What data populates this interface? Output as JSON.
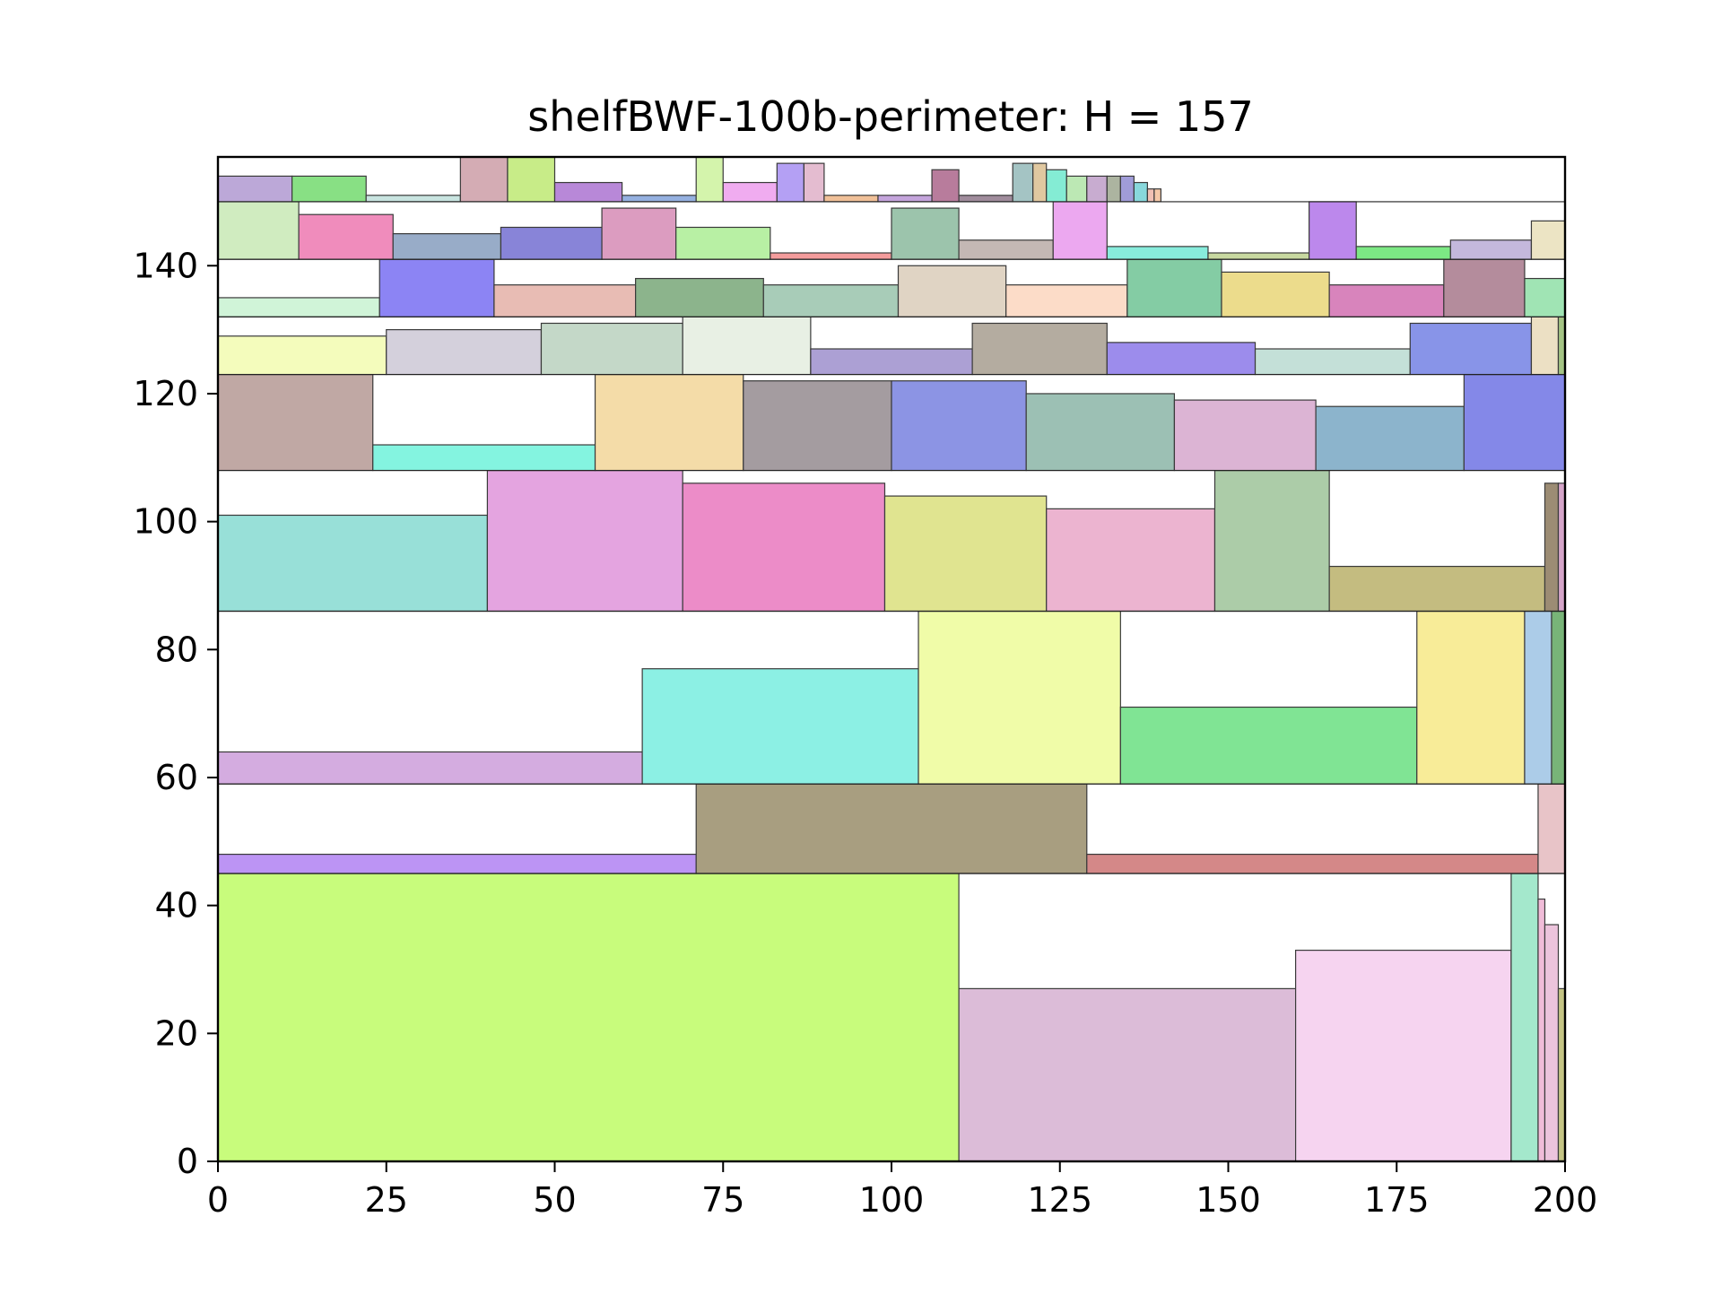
{
  "chart_data": {
    "type": "rect_packing",
    "title": "shelfBWF-100b-perimeter: H = 157",
    "xlabel": "",
    "ylabel": "",
    "xlim": [
      0,
      200
    ],
    "ylim": [
      0,
      157
    ],
    "xticks": [
      0,
      25,
      50,
      75,
      100,
      125,
      150,
      175,
      200
    ],
    "yticks": [
      0,
      20,
      40,
      60,
      80,
      100,
      120,
      140
    ],
    "grid": false,
    "shelves": [
      45,
      59,
      86,
      108,
      123,
      132,
      141,
      150,
      157
    ],
    "rects": [
      {
        "x": 0,
        "y": 0,
        "w": 110,
        "h": 45,
        "color": "#c8fc7c"
      },
      {
        "x": 110,
        "y": 0,
        "w": 50,
        "h": 27,
        "color": "#dcbcd8"
      },
      {
        "x": 160,
        "y": 0,
        "w": 32,
        "h": 33,
        "color": "#f6d4f0"
      },
      {
        "x": 192,
        "y": 0,
        "w": 4,
        "h": 45,
        "color": "#a4e8cc"
      },
      {
        "x": 196,
        "y": 0,
        "w": 1,
        "h": 41,
        "color": "#f0bcd8"
      },
      {
        "x": 197,
        "y": 0,
        "w": 2,
        "h": 37,
        "color": "#ecc4dc"
      },
      {
        "x": 199,
        "y": 0,
        "w": 1,
        "h": 27,
        "color": "#c4c484"
      },
      {
        "x": 0,
        "y": 45,
        "w": 71,
        "h": 3,
        "color": "#bc94f4"
      },
      {
        "x": 71,
        "y": 45,
        "w": 58,
        "h": 14,
        "color": "#a89e80"
      },
      {
        "x": 129,
        "y": 45,
        "w": 67,
        "h": 3,
        "color": "#d48888"
      },
      {
        "x": 196,
        "y": 45,
        "w": 4,
        "h": 14,
        "color": "#e8c4c8"
      },
      {
        "x": 0,
        "y": 59,
        "w": 63,
        "h": 5,
        "color": "#d4ace0"
      },
      {
        "x": 63,
        "y": 59,
        "w": 41,
        "h": 18,
        "color": "#8cf0e4"
      },
      {
        "x": 104,
        "y": 59,
        "w": 30,
        "h": 27,
        "color": "#f0fca8"
      },
      {
        "x": 134,
        "y": 59,
        "w": 44,
        "h": 12,
        "color": "#80e494"
      },
      {
        "x": 178,
        "y": 59,
        "w": 16,
        "h": 27,
        "color": "#f8ec98"
      },
      {
        "x": 194,
        "y": 59,
        "w": 4,
        "h": 27,
        "color": "#accce8"
      },
      {
        "x": 198,
        "y": 59,
        "w": 2,
        "h": 27,
        "color": "#78b478"
      },
      {
        "x": 0,
        "y": 86,
        "w": 40,
        "h": 15,
        "color": "#98e0d8"
      },
      {
        "x": 40,
        "y": 86,
        "w": 29,
        "h": 22,
        "color": "#e4a4e0"
      },
      {
        "x": 69,
        "y": 86,
        "w": 30,
        "h": 20,
        "color": "#ec8cc8"
      },
      {
        "x": 99,
        "y": 86,
        "w": 24,
        "h": 18,
        "color": "#e0e490"
      },
      {
        "x": 123,
        "y": 86,
        "w": 25,
        "h": 16,
        "color": "#ecb4d0"
      },
      {
        "x": 148,
        "y": 86,
        "w": 17,
        "h": 22,
        "color": "#accca8"
      },
      {
        "x": 165,
        "y": 86,
        "w": 32,
        "h": 7,
        "color": "#c4bc80"
      },
      {
        "x": 197,
        "y": 86,
        "w": 2,
        "h": 20,
        "color": "#9c8c74"
      },
      {
        "x": 199,
        "y": 86,
        "w": 1,
        "h": 20,
        "color": "#d4a4c8"
      },
      {
        "x": 0,
        "y": 108,
        "w": 23,
        "h": 15,
        "color": "#c0a8a4"
      },
      {
        "x": 23,
        "y": 108,
        "w": 33,
        "h": 4,
        "color": "#84f4e0"
      },
      {
        "x": 56,
        "y": 108,
        "w": 22,
        "h": 15,
        "color": "#f4dca8"
      },
      {
        "x": 78,
        "y": 108,
        "w": 22,
        "h": 14,
        "color": "#a49ca0"
      },
      {
        "x": 100,
        "y": 108,
        "w": 20,
        "h": 14,
        "color": "#8c94e4"
      },
      {
        "x": 120,
        "y": 108,
        "w": 22,
        "h": 12,
        "color": "#9cc0b4"
      },
      {
        "x": 142,
        "y": 108,
        "w": 21,
        "h": 11,
        "color": "#dcb4d4"
      },
      {
        "x": 163,
        "y": 108,
        "w": 22,
        "h": 10,
        "color": "#8cb4cc"
      },
      {
        "x": 185,
        "y": 108,
        "w": 15,
        "h": 15,
        "color": "#8488e8"
      },
      {
        "x": 0,
        "y": 123,
        "w": 25,
        "h": 6,
        "color": "#f4fcbc"
      },
      {
        "x": 25,
        "y": 123,
        "w": 23,
        "h": 7,
        "color": "#d4d0dc"
      },
      {
        "x": 48,
        "y": 123,
        "w": 21,
        "h": 8,
        "color": "#c4d8c8"
      },
      {
        "x": 69,
        "y": 123,
        "w": 19,
        "h": 9,
        "color": "#e8f0e4"
      },
      {
        "x": 88,
        "y": 123,
        "w": 24,
        "h": 4,
        "color": "#aca0d4"
      },
      {
        "x": 112,
        "y": 123,
        "w": 20,
        "h": 8,
        "color": "#b4aca0"
      },
      {
        "x": 132,
        "y": 123,
        "w": 22,
        "h": 5,
        "color": "#9c8cec"
      },
      {
        "x": 154,
        "y": 123,
        "w": 23,
        "h": 4,
        "color": "#c4e0d8"
      },
      {
        "x": 177,
        "y": 123,
        "w": 18,
        "h": 8,
        "color": "#8894e8"
      },
      {
        "x": 195,
        "y": 123,
        "w": 4,
        "h": 9,
        "color": "#ece0c4"
      },
      {
        "x": 199,
        "y": 123,
        "w": 1,
        "h": 9,
        "color": "#a4c484"
      },
      {
        "x": 0,
        "y": 132,
        "w": 24,
        "h": 3,
        "color": "#d0f4d8"
      },
      {
        "x": 24,
        "y": 132,
        "w": 17,
        "h": 9,
        "color": "#8c84f4"
      },
      {
        "x": 41,
        "y": 132,
        "w": 21,
        "h": 5,
        "color": "#e8bcb4"
      },
      {
        "x": 62,
        "y": 132,
        "w": 19,
        "h": 6,
        "color": "#8cb48c"
      },
      {
        "x": 81,
        "y": 132,
        "w": 20,
        "h": 5,
        "color": "#a8ccb8"
      },
      {
        "x": 101,
        "y": 132,
        "w": 16,
        "h": 8,
        "color": "#e0d4c4"
      },
      {
        "x": 117,
        "y": 132,
        "w": 18,
        "h": 5,
        "color": "#fcdcc8"
      },
      {
        "x": 135,
        "y": 132,
        "w": 14,
        "h": 9,
        "color": "#84cca4"
      },
      {
        "x": 149,
        "y": 132,
        "w": 16,
        "h": 7,
        "color": "#ecdc8c"
      },
      {
        "x": 165,
        "y": 132,
        "w": 17,
        "h": 5,
        "color": "#d884bc"
      },
      {
        "x": 182,
        "y": 132,
        "w": 12,
        "h": 9,
        "color": "#b48c9c"
      },
      {
        "x": 194,
        "y": 132,
        "w": 6,
        "h": 6,
        "color": "#a0e4b4"
      },
      {
        "x": 0,
        "y": 141,
        "w": 12,
        "h": 9,
        "color": "#d0ecc0"
      },
      {
        "x": 12,
        "y": 141,
        "w": 14,
        "h": 7,
        "color": "#f08cbc"
      },
      {
        "x": 26,
        "y": 141,
        "w": 16,
        "h": 4,
        "color": "#98acc8"
      },
      {
        "x": 42,
        "y": 141,
        "w": 15,
        "h": 5,
        "color": "#8884d8"
      },
      {
        "x": 57,
        "y": 141,
        "w": 11,
        "h": 8,
        "color": "#dc9cc0"
      },
      {
        "x": 68,
        "y": 141,
        "w": 14,
        "h": 5,
        "color": "#b8f0a4"
      },
      {
        "x": 82,
        "y": 141,
        "w": 18,
        "h": 1,
        "color": "#f49c9c"
      },
      {
        "x": 100,
        "y": 141,
        "w": 10,
        "h": 8,
        "color": "#9cc4ac"
      },
      {
        "x": 110,
        "y": 141,
        "w": 14,
        "h": 3,
        "color": "#c4b8b4"
      },
      {
        "x": 124,
        "y": 141,
        "w": 8,
        "h": 9,
        "color": "#eca8f0"
      },
      {
        "x": 132,
        "y": 141,
        "w": 15,
        "h": 2,
        "color": "#88ecdc"
      },
      {
        "x": 147,
        "y": 141,
        "w": 15,
        "h": 1,
        "color": "#c8d8a0"
      },
      {
        "x": 162,
        "y": 141,
        "w": 7,
        "h": 9,
        "color": "#bc88ec"
      },
      {
        "x": 169,
        "y": 141,
        "w": 14,
        "h": 2,
        "color": "#7ce884"
      },
      {
        "x": 183,
        "y": 141,
        "w": 12,
        "h": 3,
        "color": "#c4b8dc"
      },
      {
        "x": 195,
        "y": 141,
        "w": 5,
        "h": 6,
        "color": "#ece4c4"
      },
      {
        "x": 0,
        "y": 150,
        "w": 11,
        "h": 4,
        "color": "#bca8d8"
      },
      {
        "x": 11,
        "y": 150,
        "w": 11,
        "h": 4,
        "color": "#88e084"
      },
      {
        "x": 22,
        "y": 150,
        "w": 14,
        "h": 1,
        "color": "#c8e4e0"
      },
      {
        "x": 36,
        "y": 150,
        "w": 7,
        "h": 7,
        "color": "#d4acb4"
      },
      {
        "x": 43,
        "y": 150,
        "w": 7,
        "h": 7,
        "color": "#c8ec88"
      },
      {
        "x": 50,
        "y": 150,
        "w": 10,
        "h": 3,
        "color": "#b888d8"
      },
      {
        "x": 60,
        "y": 150,
        "w": 11,
        "h": 1,
        "color": "#94b0e0"
      },
      {
        "x": 71,
        "y": 150,
        "w": 4,
        "h": 7,
        "color": "#d4f4ac"
      },
      {
        "x": 75,
        "y": 150,
        "w": 8,
        "h": 3,
        "color": "#f0acf0"
      },
      {
        "x": 83,
        "y": 150,
        "w": 4,
        "h": 6,
        "color": "#b4a0f4"
      },
      {
        "x": 87,
        "y": 150,
        "w": 3,
        "h": 6,
        "color": "#e4bcd0"
      },
      {
        "x": 90,
        "y": 150,
        "w": 8,
        "h": 1,
        "color": "#f0c098"
      },
      {
        "x": 98,
        "y": 150,
        "w": 8,
        "h": 1,
        "color": "#c4a4dc"
      },
      {
        "x": 106,
        "y": 150,
        "w": 4,
        "h": 5,
        "color": "#b87c9c"
      },
      {
        "x": 110,
        "y": 150,
        "w": 8,
        "h": 1,
        "color": "#a08c9c"
      },
      {
        "x": 118,
        "y": 150,
        "w": 3,
        "h": 6,
        "color": "#a4c4c4"
      },
      {
        "x": 121,
        "y": 150,
        "w": 2,
        "h": 6,
        "color": "#e0c8a0"
      },
      {
        "x": 123,
        "y": 150,
        "w": 3,
        "h": 5,
        "color": "#84ecd4"
      },
      {
        "x": 126,
        "y": 150,
        "w": 3,
        "h": 4,
        "color": "#bce8b4"
      },
      {
        "x": 129,
        "y": 150,
        "w": 3,
        "h": 4,
        "color": "#c8acd0"
      },
      {
        "x": 132,
        "y": 150,
        "w": 2,
        "h": 4,
        "color": "#acb4a0"
      },
      {
        "x": 134,
        "y": 150,
        "w": 2,
        "h": 4,
        "color": "#a09cd8"
      },
      {
        "x": 136,
        "y": 150,
        "w": 2,
        "h": 3,
        "color": "#88d8dc"
      },
      {
        "x": 138,
        "y": 150,
        "w": 1,
        "h": 2,
        "color": "#f0c0b4"
      },
      {
        "x": 139,
        "y": 150,
        "w": 1,
        "h": 2,
        "color": "#f4c8a8"
      }
    ]
  }
}
